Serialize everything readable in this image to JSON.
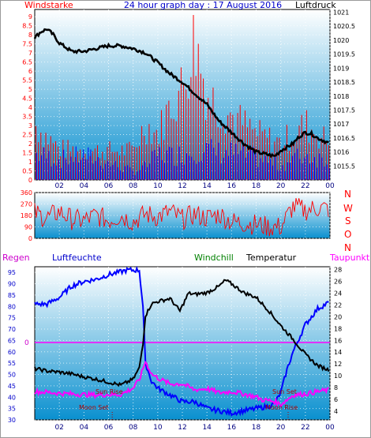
{
  "colors": {
    "wind_avg": "#0000ff",
    "wind_gust": "#ff0000",
    "pressure": "#000000",
    "wind_dir": "#ff0000",
    "humidity": "#0000ff",
    "temperature": "#000000",
    "dewpoint": "#ff00ff",
    "rain_line": "#ff00ff",
    "windchill_label": "#008000",
    "panel_top": "#ffffff",
    "panel_bottom": "#0a90cf"
  },
  "labels": {
    "windstarke": "Windstarke",
    "title": "24 hour graph day : 17 August 2016",
    "luftdruck": "Luftdruck",
    "dir_n1": "N",
    "dir_w": "W",
    "dir_s": "S",
    "dir_o": "O",
    "dir_n2": "N",
    "regen": "Regen",
    "luftfeuchte": "Luftfeuchte",
    "windchill": "Windchill",
    "temperatur": "Temperatur",
    "taupunkt": "Taupunkt",
    "sun_rise": "Sun Rise",
    "sun_set": "Sun Set",
    "moon_set": "Moon Set",
    "moon_rise": "Moon Rise",
    "rain_zero": "0"
  },
  "chart_data": [
    {
      "type": "line",
      "title": "24 hour graph day : 17 August 2016",
      "x_ticks": [
        "02",
        "04",
        "06",
        "08",
        "10",
        "12",
        "14",
        "16",
        "18",
        "20",
        "22",
        "00"
      ],
      "y_left_label": "Windstarke",
      "y_left_ticks": [
        "0",
        "0.5",
        "1",
        "1.5",
        "2",
        "2.5",
        "3",
        "3.5",
        "4",
        "4.5",
        "5",
        "5.5",
        "6",
        "6.5",
        "7",
        "7.5",
        "8",
        "8.5",
        "9"
      ],
      "y_left_range": [
        0,
        9.4
      ],
      "y_right_label": "Luftdruck",
      "y_right_ticks": [
        "1015.5",
        "1016",
        "1016.5",
        "1017",
        "1017.5",
        "1018",
        "1018.5",
        "1019",
        "1019.5",
        "1020",
        "1020.5",
        "1021"
      ],
      "y_right_range": [
        1015,
        1021.1
      ],
      "series": [
        {
          "name": "Luftdruck",
          "x": [
            0,
            0.5,
            1,
            1.5,
            2,
            3,
            4,
            5,
            6,
            7,
            8,
            9,
            10,
            11,
            12,
            13,
            14,
            15,
            16,
            17,
            18,
            19,
            19.5,
            20,
            21,
            21.5,
            22,
            22.5,
            23,
            24
          ],
          "y": [
            1020.1,
            1020.3,
            1020.4,
            1020.2,
            1019.9,
            1019.6,
            1019.6,
            1019.7,
            1019.8,
            1019.8,
            1019.7,
            1019.55,
            1019.2,
            1018.8,
            1018.5,
            1018.1,
            1017.7,
            1017.1,
            1016.7,
            1016.3,
            1016.0,
            1015.9,
            1015.85,
            1016.05,
            1016.3,
            1016.55,
            1016.7,
            1016.65,
            1016.5,
            1016.3
          ]
        },
        {
          "name": "Windstarke",
          "x": [
            0,
            2,
            4,
            6,
            8,
            9,
            10,
            11,
            12,
            13,
            14,
            15,
            16,
            17,
            18,
            19,
            20,
            21,
            22,
            23,
            24
          ],
          "y": [
            1.9,
            1.5,
            1.8,
            1.2,
            0.6,
            1.0,
            1.9,
            1.8,
            1.9,
            2.2,
            2.2,
            2.0,
            2.0,
            1.8,
            1.6,
            1.3,
            1.0,
            1.6,
            1.8,
            1.6,
            1.5
          ]
        },
        {
          "name": "Windboeen",
          "x": [
            0,
            2,
            4,
            6,
            8,
            9,
            10,
            11,
            12,
            13,
            14,
            15,
            16,
            17,
            18,
            19,
            20,
            21,
            22,
            23,
            24
          ],
          "y": [
            3.6,
            2.0,
            1.9,
            1.9,
            1.9,
            3.6,
            3.0,
            4.8,
            6.0,
            9.2,
            5.6,
            4.8,
            4.2,
            3.6,
            3.0,
            2.7,
            2.4,
            3.0,
            3.6,
            3.0,
            2.4
          ]
        }
      ]
    },
    {
      "type": "scatter",
      "x_ticks": [
        "02",
        "04",
        "06",
        "08",
        "10",
        "12",
        "14",
        "16",
        "18",
        "20",
        "22",
        "00"
      ],
      "y_ticks": [
        "0",
        "90",
        "180",
        "270",
        "360"
      ],
      "y_range": [
        0,
        360
      ],
      "series": [
        {
          "name": "Windrichtung",
          "x": [
            0,
            1,
            2,
            3,
            4,
            5,
            6,
            7,
            8,
            9,
            10,
            11,
            12,
            13,
            14,
            15,
            16,
            17,
            18,
            19,
            20,
            21,
            22,
            23,
            24
          ],
          "y": [
            200,
            160,
            210,
            150,
            140,
            180,
            140,
            180,
            130,
            190,
            170,
            210,
            150,
            190,
            160,
            190,
            130,
            120,
            110,
            90,
            90,
            250,
            220,
            240,
            230
          ]
        }
      ]
    },
    {
      "type": "line",
      "x_ticks": [
        "02",
        "04",
        "06",
        "08",
        "10",
        "12",
        "14",
        "16",
        "18",
        "20",
        "22",
        "00"
      ],
      "y_left_label": "Luftfeuchte",
      "y_left_ticks": [
        "30",
        "35",
        "40",
        "45",
        "50",
        "55",
        "60",
        "65",
        "70",
        "75",
        "80",
        "85",
        "90",
        "95"
      ],
      "y_left_range": [
        30,
        97.5
      ],
      "y_right_label": "Temperatur",
      "y_right_ticks": [
        "4",
        "6",
        "8",
        "10",
        "12",
        "14",
        "16",
        "18",
        "20",
        "22",
        "24",
        "26",
        "28"
      ],
      "y_right_range": [
        2.5,
        28.5
      ],
      "annotations": [
        "Sun Rise",
        "Sun Set",
        "Moon Set",
        "Moon Rise"
      ],
      "series": [
        {
          "name": "Luftfeuchte",
          "x": [
            0,
            1,
            2,
            3,
            4,
            5,
            6,
            6.8,
            7.5,
            8,
            8.5,
            8.8,
            9,
            9.5,
            10,
            11,
            12,
            13,
            14,
            15,
            16,
            17,
            18,
            19,
            19.5,
            20,
            20.5,
            21,
            22,
            23,
            24
          ],
          "y": [
            81,
            81,
            84,
            89,
            91,
            92,
            94,
            95,
            96,
            96,
            96,
            80,
            55,
            47,
            44,
            41,
            38,
            38,
            35,
            34,
            33,
            34,
            35,
            36,
            37,
            42,
            52,
            60,
            72,
            79,
            82
          ]
        },
        {
          "name": "Temperatur",
          "x": [
            0,
            1,
            2,
            3,
            4,
            5,
            6,
            7,
            8,
            8.5,
            8.8,
            9,
            9.5,
            10,
            11,
            11.8,
            12.5,
            13,
            14,
            15,
            15.5,
            16,
            17,
            18,
            19,
            20,
            21,
            22,
            23,
            24
          ],
          "y": [
            11.2,
            10.8,
            10.6,
            10.3,
            9.8,
            9.4,
            8.9,
            8.4,
            9.4,
            11.3,
            15.5,
            20.2,
            22.2,
            22.6,
            23.1,
            21.0,
            24.0,
            23.8,
            24.1,
            25.2,
            26.2,
            25.6,
            24.1,
            23.3,
            21.1,
            18.5,
            16.2,
            13.6,
            11.7,
            10.9
          ]
        },
        {
          "name": "Taupunkt",
          "x": [
            0,
            1,
            2,
            3,
            4,
            5,
            6,
            7,
            8,
            8.5,
            9,
            9.5,
            10,
            11,
            12,
            13,
            14,
            15,
            16,
            17,
            18,
            18.5,
            19,
            19.5,
            20,
            20.5,
            21,
            22,
            23,
            24
          ],
          "y": [
            7.3,
            7.2,
            7.0,
            6.9,
            6.8,
            6.7,
            6.8,
            6.8,
            7.9,
            9.3,
            12.4,
            10.3,
            9.6,
            8.6,
            8.6,
            7.6,
            7.8,
            7.1,
            7.3,
            6.9,
            6.4,
            5.9,
            5.8,
            5.6,
            5.1,
            5.9,
            6.7,
            6.9,
            7.3,
            7.6
          ]
        }
      ]
    }
  ]
}
